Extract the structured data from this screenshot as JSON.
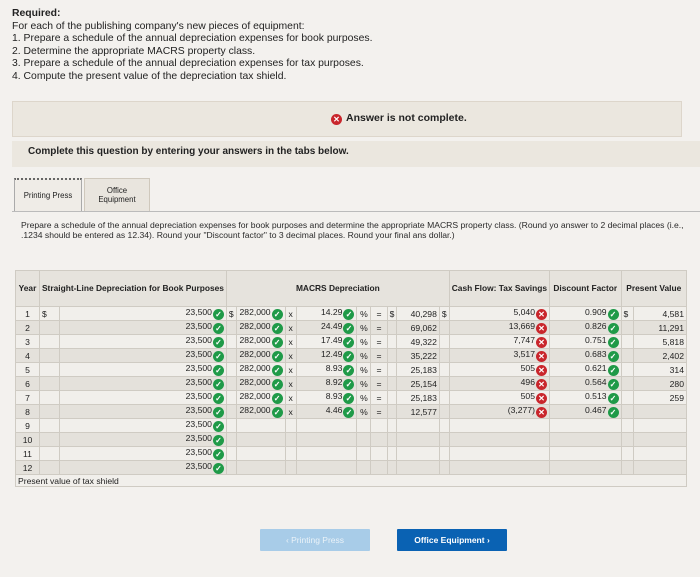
{
  "required": {
    "title": "Required:",
    "intro": "For each of the publishing company's new pieces of equipment:",
    "items": [
      "1. Prepare a schedule of the annual depreciation expenses for book purposes.",
      "2. Determine the appropriate MACRS property class.",
      "3. Prepare a schedule of the annual depreciation expenses for tax purposes.",
      "4. Compute the present value of the depreciation tax shield."
    ]
  },
  "banner": {
    "text": "Answer is not complete."
  },
  "complete_prompt": "Complete this question by entering your answers in the tabs below.",
  "tabs": [
    {
      "label": "Printing Press"
    },
    {
      "label": "Office Equipment"
    }
  ],
  "instructions": "Prepare a schedule of the annual depreciation expenses for book purposes and determine the appropriate MACRS property class. (Round yo answer to 2 decimal places (i.e., .1234 should be entered as 12.34). Round your \"Discount factor\" to 3 decimal places. Round your final ans dollar.)",
  "table": {
    "headers": {
      "year": "Year",
      "sl": "Straight-Line Depreciation for Book Purposes",
      "macrs": "MACRS Depreciation",
      "cash": "Cash Flow: Tax Savings",
      "discount": "Discount Factor",
      "pv": "Present Value"
    },
    "rows": [
      {
        "year": "1",
        "sl": "23,500",
        "base": "282,000",
        "rate": "14.29",
        "dep": "40,298",
        "cf": "5,040",
        "cf_ok": false,
        "df": "0.909",
        "pv": "4,581"
      },
      {
        "year": "2",
        "sl": "23,500",
        "base": "282,000",
        "rate": "24.49",
        "dep": "69,062",
        "cf": "13,669",
        "cf_ok": false,
        "df": "0.826",
        "pv": "11,291"
      },
      {
        "year": "3",
        "sl": "23,500",
        "base": "282,000",
        "rate": "17.49",
        "dep": "49,322",
        "cf": "7,747",
        "cf_ok": false,
        "df": "0.751",
        "pv": "5,818"
      },
      {
        "year": "4",
        "sl": "23,500",
        "base": "282,000",
        "rate": "12.49",
        "dep": "35,222",
        "cf": "3,517",
        "cf_ok": false,
        "df": "0.683",
        "pv": "2,402"
      },
      {
        "year": "5",
        "sl": "23,500",
        "base": "282,000",
        "rate": "8.93",
        "dep": "25,183",
        "cf": "505",
        "cf_ok": false,
        "df": "0.621",
        "pv": "314"
      },
      {
        "year": "6",
        "sl": "23,500",
        "base": "282,000",
        "rate": "8.92",
        "dep": "25,154",
        "cf": "496",
        "cf_ok": false,
        "df": "0.564",
        "pv": "280"
      },
      {
        "year": "7",
        "sl": "23,500",
        "base": "282,000",
        "rate": "8.93",
        "dep": "25,183",
        "cf": "505",
        "cf_ok": false,
        "df": "0.513",
        "pv": "259"
      },
      {
        "year": "8",
        "sl": "23,500",
        "base": "282,000",
        "rate": "4.46",
        "dep": "12,577",
        "cf": "(3,277)",
        "cf_ok": false,
        "df": "0.467",
        "pv": ""
      },
      {
        "year": "9",
        "sl": "23,500"
      },
      {
        "year": "10",
        "sl": "23,500"
      },
      {
        "year": "11",
        "sl": "23,500"
      },
      {
        "year": "12",
        "sl": "23,500"
      }
    ],
    "symbols": {
      "dollar": "$",
      "times": "x",
      "percent": "%",
      "equals": "="
    },
    "footer": "Present value of tax shield"
  },
  "buttons": {
    "prev": "‹  Printing Press",
    "next": "Office Equipment  ›"
  },
  "colors": {
    "correct": "#1f9a48",
    "incorrect": "#c9262c",
    "next_button": "#0a62b3"
  }
}
